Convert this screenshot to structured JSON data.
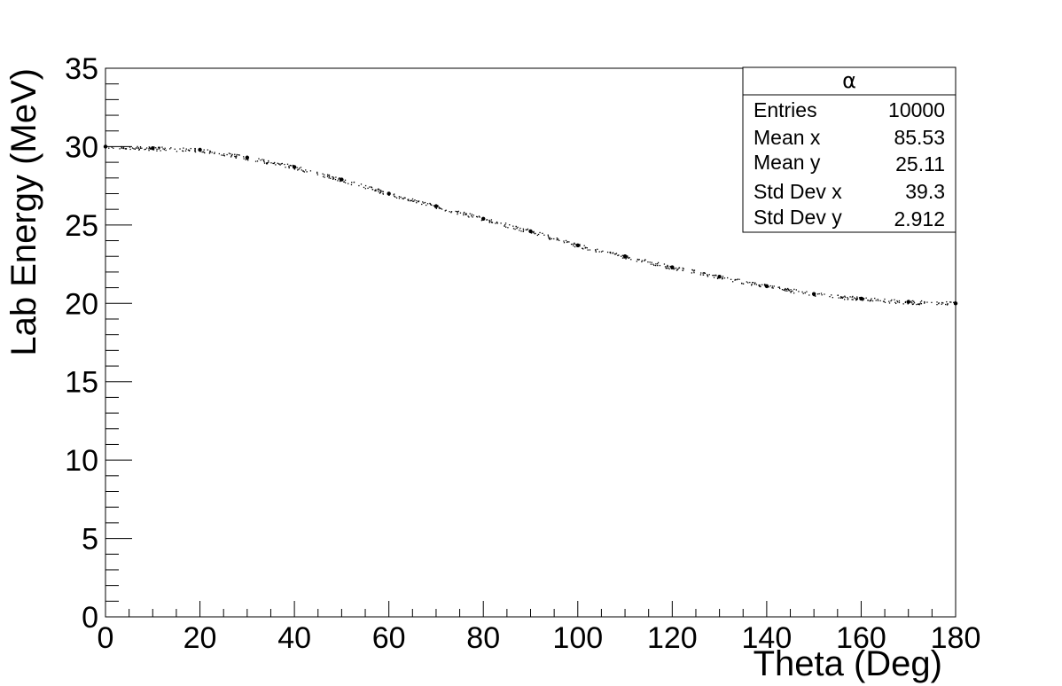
{
  "chart_data": {
    "type": "scatter",
    "xlabel": "Theta (Deg)",
    "ylabel": "Lab Energy (MeV)",
    "xlim": [
      0,
      180
    ],
    "ylim": [
      0,
      35
    ],
    "x_ticks": [
      "0",
      "20",
      "40",
      "60",
      "80",
      "100",
      "120",
      "140",
      "160",
      "180"
    ],
    "y_ticks": [
      "0",
      "5",
      "10",
      "15",
      "20",
      "25",
      "30",
      "35"
    ],
    "grid": false,
    "series": [
      {
        "color": "#000000",
        "x": [
          0,
          10,
          20,
          30,
          40,
          50,
          60,
          70,
          80,
          90,
          100,
          110,
          120,
          130,
          140,
          150,
          160,
          170,
          180
        ],
        "y": [
          30.0,
          29.9,
          29.8,
          29.3,
          28.7,
          27.9,
          27.0,
          26.2,
          25.4,
          24.6,
          23.7,
          23.0,
          22.3,
          21.7,
          21.1,
          20.6,
          20.3,
          20.1,
          20.0
        ]
      }
    ],
    "stats_box": {
      "title": "α",
      "position": "top-right",
      "rows": [
        {
          "label": "Entries",
          "value": "10000"
        },
        {
          "label": "Mean x",
          "value": "85.53"
        },
        {
          "label": "Mean y",
          "value": "25.11"
        },
        {
          "label": "Std Dev x",
          "value": "39.3"
        },
        {
          "label": "Std Dev y",
          "value": "2.912"
        }
      ]
    }
  }
}
